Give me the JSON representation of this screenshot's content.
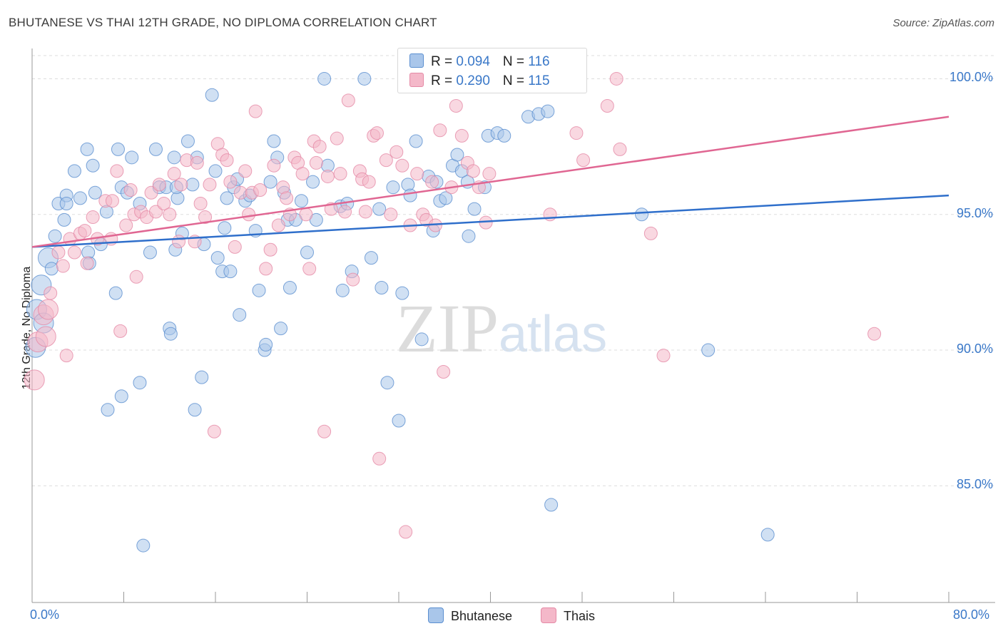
{
  "header": {
    "title": "BHUTANESE VS THAI 12TH GRADE, NO DIPLOMA CORRELATION CHART",
    "source": "Source: ZipAtlas.com"
  },
  "watermark": {
    "zip": "ZIP",
    "atlas": "atlas"
  },
  "legend": {
    "rows": [
      {
        "r_label": "R = ",
        "r_value": "0.094",
        "n_label": "N = ",
        "n_value": "116",
        "color": "#a9c6ea"
      },
      {
        "r_label": "R = ",
        "r_value": "0.290",
        "n_label": "N = ",
        "n_value": "115",
        "color": "#f4b8c9"
      }
    ]
  },
  "bottom_legend": {
    "items": [
      {
        "label": "Bhutanese",
        "color": "#a9c6ea"
      },
      {
        "label": "Thais",
        "color": "#f4b8c9"
      }
    ]
  },
  "axes": {
    "ylabel": "12th Grade, No Diploma",
    "x_min_label": "0.0%",
    "x_max_label": "80.0%",
    "y_tick_labels": [
      "100.0%",
      "95.0%",
      "90.0%",
      "85.0%"
    ]
  },
  "chart_data": {
    "type": "scatter",
    "title": "BHUTANESE VS THAI 12TH GRADE, NO DIPLOMA CORRELATION CHART",
    "xlabel": "",
    "ylabel": "12th Grade, No Diploma",
    "xlim": [
      0,
      80
    ],
    "ylim": [
      80.7,
      100.8
    ],
    "y_ticks": [
      100,
      95,
      90,
      85
    ],
    "x_tick_count": 11,
    "grid": "horizontal dashed",
    "legend_position": "top-center",
    "series": [
      {
        "name": "Bhutanese",
        "color": "#a9c6ea",
        "stroke": "#5b8fd0",
        "trend": {
          "x": [
            0,
            80
          ],
          "y": [
            93.8,
            95.7
          ],
          "color": "#2f6fcb"
        },
        "points": [
          [
            0.3,
            90.1
          ],
          [
            0.4,
            91.5
          ],
          [
            0.8,
            92.4
          ],
          [
            1.0,
            91.0
          ],
          [
            1.4,
            93.4
          ],
          [
            1.7,
            93.0
          ],
          [
            2.0,
            94.2
          ],
          [
            2.3,
            95.4
          ],
          [
            2.8,
            94.8
          ],
          [
            3.0,
            95.7
          ],
          [
            3.7,
            96.6
          ],
          [
            4.2,
            95.6
          ],
          [
            4.8,
            97.4
          ],
          [
            4.9,
            93.6
          ],
          [
            5.3,
            96.8
          ],
          [
            5.5,
            95.8
          ],
          [
            6.0,
            93.9
          ],
          [
            6.5,
            95.1
          ],
          [
            7.5,
            97.4
          ],
          [
            7.8,
            96.0
          ],
          [
            8.7,
            97.1
          ],
          [
            7.3,
            92.1
          ],
          [
            9.4,
            95.4
          ],
          [
            10.3,
            93.6
          ],
          [
            10.8,
            97.4
          ],
          [
            11.1,
            96.0
          ],
          [
            11.7,
            96.0
          ],
          [
            12.0,
            90.8
          ],
          [
            12.4,
            97.1
          ],
          [
            12.5,
            93.7
          ],
          [
            12.7,
            95.6
          ],
          [
            13.1,
            94.3
          ],
          [
            13.6,
            97.7
          ],
          [
            14.0,
            96.1
          ],
          [
            14.4,
            97.1
          ],
          [
            14.8,
            89.0
          ],
          [
            15.0,
            93.9
          ],
          [
            15.7,
            99.4
          ],
          [
            16.0,
            96.6
          ],
          [
            16.2,
            93.4
          ],
          [
            16.6,
            92.9
          ],
          [
            16.8,
            94.5
          ],
          [
            17.0,
            95.6
          ],
          [
            17.3,
            92.9
          ],
          [
            17.6,
            96.0
          ],
          [
            17.9,
            96.3
          ],
          [
            18.1,
            91.3
          ],
          [
            18.6,
            95.5
          ],
          [
            19.0,
            95.7
          ],
          [
            19.5,
            94.4
          ],
          [
            19.8,
            92.2
          ],
          [
            20.3,
            90.0
          ],
          [
            20.4,
            90.2
          ],
          [
            20.8,
            96.2
          ],
          [
            21.1,
            97.7
          ],
          [
            21.4,
            97.1
          ],
          [
            21.7,
            90.8
          ],
          [
            22.0,
            95.8
          ],
          [
            22.3,
            94.8
          ],
          [
            22.5,
            92.3
          ],
          [
            23.0,
            94.8
          ],
          [
            23.5,
            95.5
          ],
          [
            24.0,
            93.6
          ],
          [
            24.5,
            96.2
          ],
          [
            24.8,
            94.8
          ],
          [
            25.5,
            100.0
          ],
          [
            25.8,
            96.8
          ],
          [
            26.9,
            95.3
          ],
          [
            27.1,
            92.2
          ],
          [
            27.5,
            95.4
          ],
          [
            27.9,
            92.9
          ],
          [
            29.0,
            100.0
          ],
          [
            29.6,
            93.4
          ],
          [
            30.3,
            95.2
          ],
          [
            30.5,
            92.3
          ],
          [
            31.0,
            88.8
          ],
          [
            31.5,
            96.0
          ],
          [
            32.0,
            87.4
          ],
          [
            32.3,
            92.1
          ],
          [
            32.8,
            96.1
          ],
          [
            33.0,
            95.7
          ],
          [
            33.5,
            97.7
          ],
          [
            34.0,
            90.4
          ],
          [
            34.6,
            96.4
          ],
          [
            35.0,
            94.4
          ],
          [
            35.3,
            96.2
          ],
          [
            35.6,
            95.5
          ],
          [
            36.1,
            95.6
          ],
          [
            36.7,
            96.8
          ],
          [
            37.1,
            97.2
          ],
          [
            37.5,
            96.6
          ],
          [
            38.0,
            96.2
          ],
          [
            38.1,
            94.2
          ],
          [
            38.6,
            95.2
          ],
          [
            39.5,
            96.0
          ],
          [
            39.8,
            97.9
          ],
          [
            40.6,
            98.0
          ],
          [
            41.2,
            97.9
          ],
          [
            43.3,
            98.6
          ],
          [
            44.2,
            98.7
          ],
          [
            45.0,
            98.8
          ],
          [
            45.3,
            84.3
          ],
          [
            45.6,
            100.0
          ],
          [
            53.2,
            95.0
          ],
          [
            59.0,
            90.0
          ],
          [
            64.2,
            83.2
          ],
          [
            3.0,
            95.4
          ],
          [
            5.0,
            93.2
          ],
          [
            7.8,
            88.3
          ],
          [
            9.4,
            88.8
          ],
          [
            12.1,
            90.6
          ],
          [
            8.3,
            95.8
          ],
          [
            12.6,
            96.0
          ],
          [
            9.7,
            82.8
          ],
          [
            6.6,
            87.8
          ],
          [
            14.2,
            87.8
          ]
        ]
      },
      {
        "name": "Thais",
        "color": "#f4b8c9",
        "stroke": "#e58aa6",
        "trend": {
          "x": [
            0,
            80
          ],
          "y": [
            93.8,
            98.6
          ],
          "color": "#e06692"
        },
        "points": [
          [
            0.2,
            88.9
          ],
          [
            0.5,
            90.3
          ],
          [
            1.0,
            91.3
          ],
          [
            1.2,
            90.5
          ],
          [
            1.4,
            91.5
          ],
          [
            1.6,
            92.1
          ],
          [
            2.3,
            93.6
          ],
          [
            2.7,
            93.1
          ],
          [
            3.0,
            89.8
          ],
          [
            3.3,
            94.1
          ],
          [
            3.7,
            93.6
          ],
          [
            4.2,
            94.3
          ],
          [
            4.6,
            94.4
          ],
          [
            4.8,
            93.2
          ],
          [
            5.3,
            94.9
          ],
          [
            5.7,
            94.1
          ],
          [
            6.4,
            95.5
          ],
          [
            6.9,
            94.1
          ],
          [
            7.0,
            95.5
          ],
          [
            7.4,
            96.6
          ],
          [
            7.7,
            90.7
          ],
          [
            8.2,
            94.6
          ],
          [
            8.6,
            95.9
          ],
          [
            8.9,
            95.0
          ],
          [
            9.1,
            92.7
          ],
          [
            9.5,
            95.1
          ],
          [
            10.0,
            94.9
          ],
          [
            10.4,
            95.8
          ],
          [
            10.8,
            95.1
          ],
          [
            11.1,
            96.1
          ],
          [
            11.5,
            95.4
          ],
          [
            12.0,
            95.0
          ],
          [
            12.4,
            96.5
          ],
          [
            12.8,
            94.0
          ],
          [
            13.0,
            96.1
          ],
          [
            13.5,
            97.0
          ],
          [
            14.2,
            94.0
          ],
          [
            14.4,
            96.9
          ],
          [
            14.7,
            95.4
          ],
          [
            15.1,
            94.9
          ],
          [
            15.5,
            96.1
          ],
          [
            15.9,
            87.0
          ],
          [
            16.2,
            97.6
          ],
          [
            16.6,
            97.2
          ],
          [
            17.0,
            97.0
          ],
          [
            17.3,
            96.2
          ],
          [
            17.7,
            93.8
          ],
          [
            18.2,
            95.8
          ],
          [
            18.6,
            96.6
          ],
          [
            18.9,
            95.0
          ],
          [
            19.2,
            95.8
          ],
          [
            19.5,
            98.8
          ],
          [
            19.9,
            95.9
          ],
          [
            20.4,
            93.0
          ],
          [
            20.8,
            93.7
          ],
          [
            21.1,
            96.8
          ],
          [
            21.5,
            94.6
          ],
          [
            21.9,
            96.0
          ],
          [
            22.2,
            95.6
          ],
          [
            22.5,
            95.0
          ],
          [
            22.9,
            97.1
          ],
          [
            23.2,
            96.9
          ],
          [
            23.6,
            96.5
          ],
          [
            23.9,
            95.0
          ],
          [
            24.2,
            93.0
          ],
          [
            24.6,
            97.7
          ],
          [
            24.8,
            96.9
          ],
          [
            25.1,
            97.5
          ],
          [
            25.5,
            87.0
          ],
          [
            25.8,
            96.4
          ],
          [
            26.1,
            95.2
          ],
          [
            26.6,
            97.8
          ],
          [
            26.9,
            96.5
          ],
          [
            27.3,
            95.1
          ],
          [
            27.6,
            99.2
          ],
          [
            28.0,
            92.6
          ],
          [
            28.6,
            96.6
          ],
          [
            28.8,
            96.3
          ],
          [
            29.1,
            95.1
          ],
          [
            29.4,
            96.2
          ],
          [
            29.8,
            97.9
          ],
          [
            30.1,
            98.0
          ],
          [
            30.3,
            86.0
          ],
          [
            30.9,
            97.0
          ],
          [
            31.3,
            95.0
          ],
          [
            31.8,
            97.3
          ],
          [
            32.3,
            96.8
          ],
          [
            32.6,
            83.3
          ],
          [
            33.0,
            94.6
          ],
          [
            33.6,
            96.5
          ],
          [
            34.1,
            95.0
          ],
          [
            34.4,
            94.8
          ],
          [
            34.9,
            96.2
          ],
          [
            35.2,
            94.6
          ],
          [
            35.6,
            98.1
          ],
          [
            35.9,
            89.2
          ],
          [
            36.1,
            100.0
          ],
          [
            36.6,
            96.0
          ],
          [
            37.0,
            99.0
          ],
          [
            37.5,
            97.9
          ],
          [
            38.0,
            96.9
          ],
          [
            38.5,
            96.6
          ],
          [
            39.0,
            96.0
          ],
          [
            39.6,
            94.7
          ],
          [
            39.9,
            96.5
          ],
          [
            44.0,
            100.0
          ],
          [
            45.2,
            95.0
          ],
          [
            47.5,
            98.0
          ],
          [
            48.1,
            97.0
          ],
          [
            50.2,
            99.0
          ],
          [
            51.0,
            100.0
          ],
          [
            51.3,
            97.4
          ],
          [
            54.0,
            94.3
          ],
          [
            55.1,
            89.8
          ],
          [
            73.5,
            90.6
          ]
        ]
      }
    ]
  }
}
